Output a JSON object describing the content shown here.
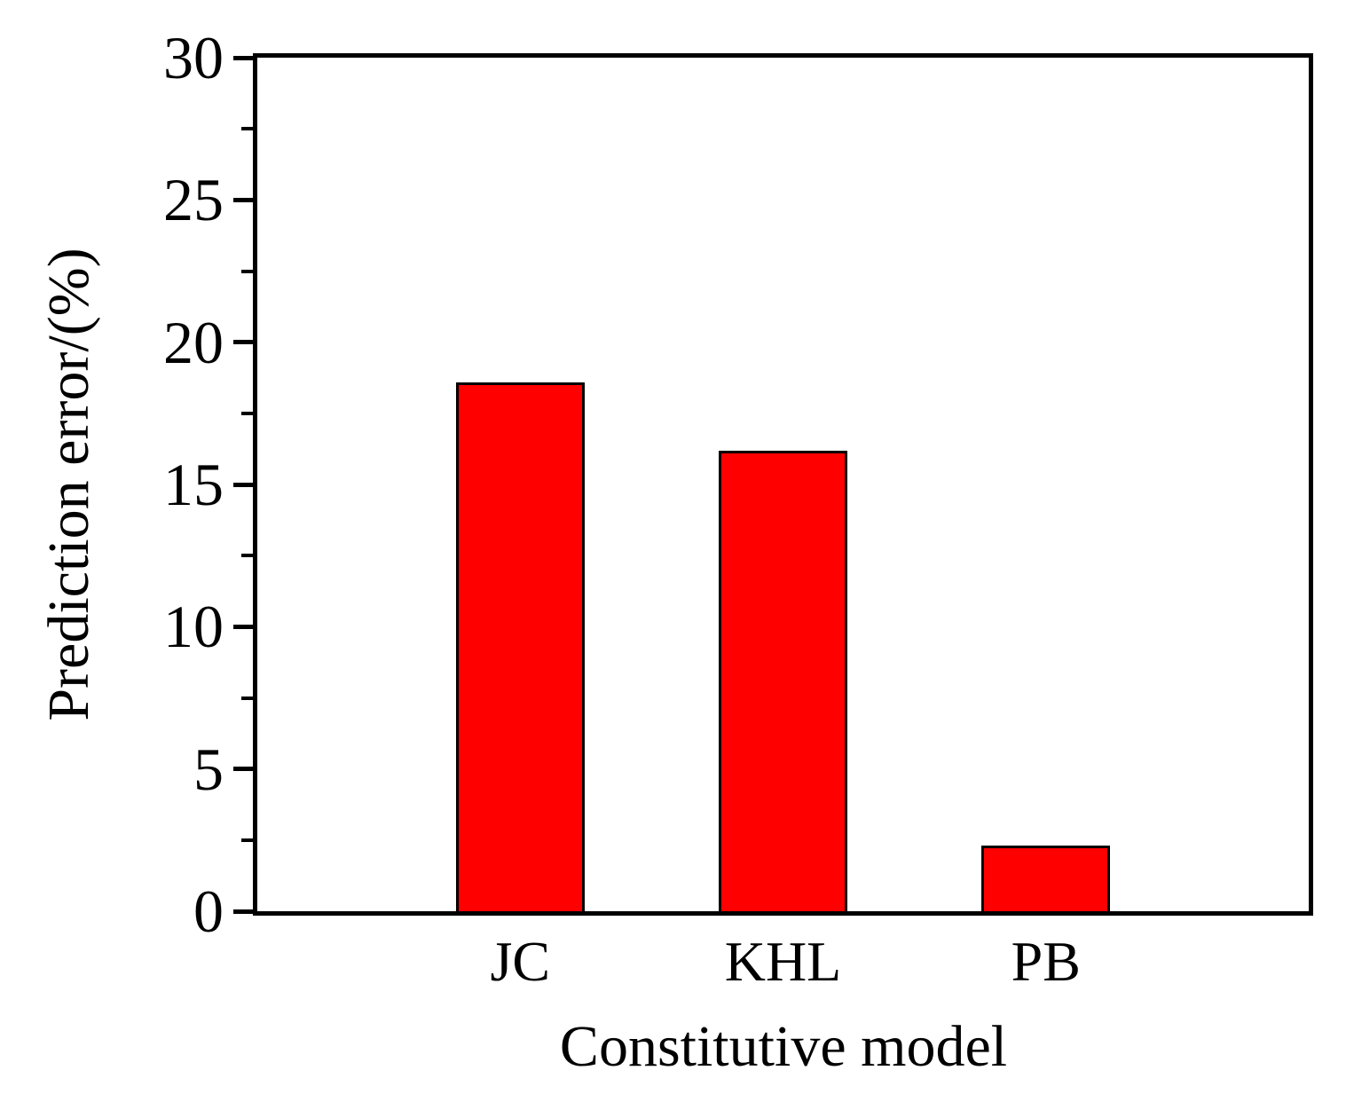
{
  "chart_data": {
    "type": "bar",
    "title": "",
    "xlabel": "Constitutive model",
    "ylabel": "Prediction error/(%)",
    "categories": [
      "JC",
      "KHL",
      "PB"
    ],
    "values": [
      18.6,
      16.2,
      2.3
    ],
    "ylim": [
      0,
      30
    ],
    "yticks": [
      0,
      5,
      10,
      15,
      20,
      25,
      30
    ],
    "yticks_minor": [
      2.5,
      7.5,
      12.5,
      17.5,
      22.5,
      27.5
    ],
    "bar_width_frac": 0.122,
    "bar_color": "#ff0000",
    "bar_border_color": "#000000",
    "axis_color": "#000000",
    "grid": false,
    "legend": null
  }
}
